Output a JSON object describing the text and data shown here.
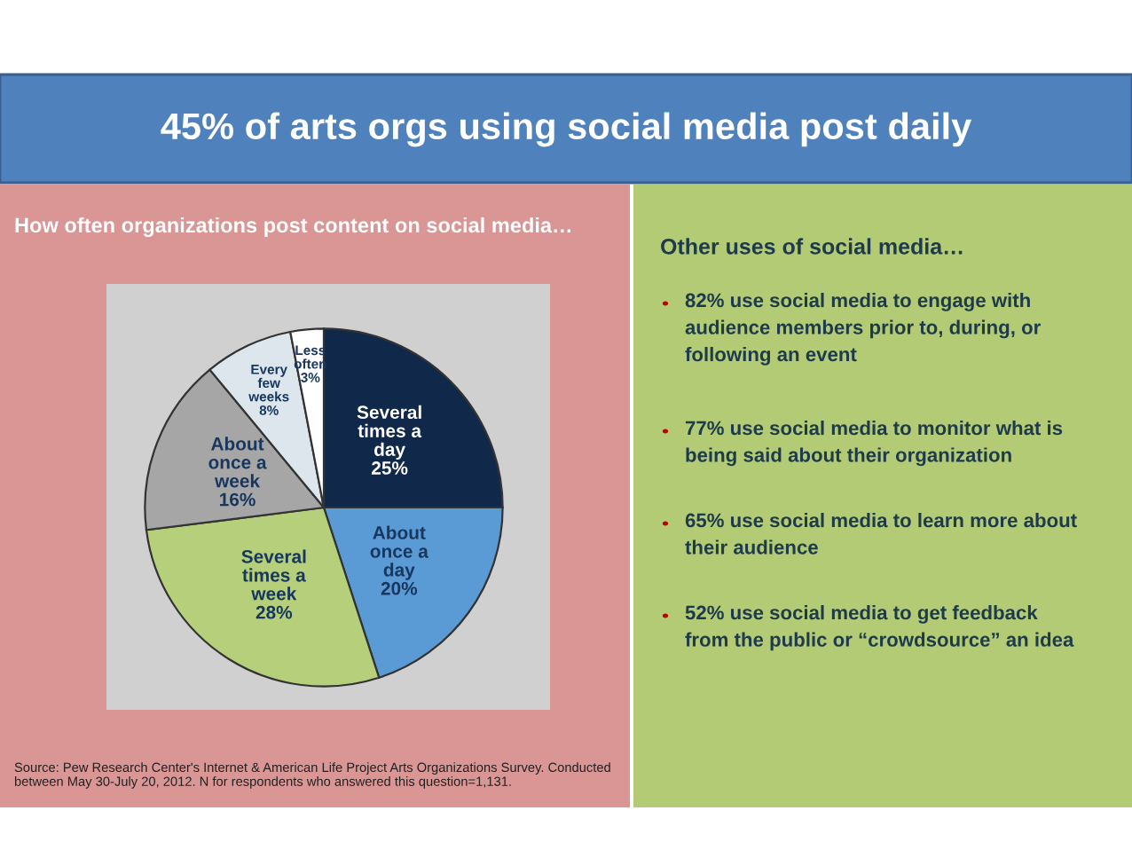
{
  "chart_data": [
    {
      "type": "pie",
      "title": "45% of arts orgs using social media post daily",
      "subtitle": "How often organizations post content on social media…",
      "categories": [
        "Several times a day",
        "About once a day",
        "Several times a week",
        "About once a week",
        "Every few weeks",
        "Less often"
      ],
      "values": [
        25,
        20,
        28,
        16,
        8,
        3
      ],
      "colors": [
        "#10294a",
        "#5b9bd5",
        "#b5cf7a",
        "#a6a6a6",
        "#dde6ec",
        "#ffffff"
      ],
      "value_labels": [
        "25%",
        "20%",
        "28%",
        "16%",
        "8%",
        "3%"
      ],
      "legend": false,
      "annotations": [
        "Source: Pew Research Center's Internet & American Life Project Arts Organizations Survey. Conducted between May 30-July 20, 2012. N for respondents who answered this question=1,131."
      ]
    },
    {
      "type": "other",
      "title": "Other uses of social media…",
      "annotations": [
        "82% use social media to engage with audience members prior to, during, or following an event",
        "77% use social media to monitor what is being said about their organization",
        "65% use social media to learn more about their audience",
        "52% use social media to get feedback from the public or “crowdsource” an idea"
      ]
    }
  ]
}
